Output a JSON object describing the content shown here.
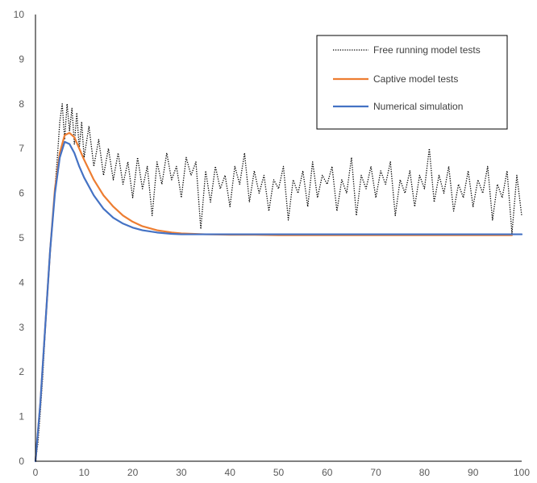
{
  "chart_data": {
    "type": "line",
    "title": "",
    "xlabel": "",
    "ylabel": "",
    "xlim": [
      0,
      100
    ],
    "ylim": [
      0,
      10
    ],
    "x_ticks": [
      0,
      10,
      20,
      30,
      40,
      50,
      60,
      70,
      80,
      90,
      100
    ],
    "y_ticks": [
      0,
      1,
      2,
      3,
      4,
      5,
      6,
      7,
      8,
      9,
      10
    ],
    "grid": false,
    "legend_position": "top-right",
    "series": [
      {
        "name": "Free running model tests",
        "color": "#000000",
        "style": "dotted",
        "x": [
          0,
          0.5,
          1,
          1.5,
          2,
          2.5,
          3,
          3.5,
          4,
          4.5,
          5,
          5.5,
          6,
          6.5,
          7,
          7.5,
          8,
          8.5,
          9,
          9.5,
          10,
          11,
          12,
          13,
          14,
          15,
          16,
          17,
          18,
          19,
          20,
          21,
          22,
          23,
          24,
          25,
          26,
          27,
          28,
          29,
          30,
          31,
          32,
          33,
          34,
          35,
          36,
          37,
          38,
          39,
          40,
          41,
          42,
          43,
          44,
          45,
          46,
          47,
          48,
          49,
          50,
          51,
          52,
          53,
          54,
          55,
          56,
          57,
          58,
          59,
          60,
          61,
          62,
          63,
          64,
          65,
          66,
          67,
          68,
          69,
          70,
          71,
          72,
          73,
          74,
          75,
          76,
          77,
          78,
          79,
          80,
          81,
          82,
          83,
          84,
          85,
          86,
          87,
          88,
          89,
          90,
          91,
          92,
          93,
          94,
          95,
          96,
          97,
          98,
          99,
          100
        ],
        "y": [
          0,
          0.4,
          1.1,
          1.9,
          2.9,
          3.8,
          4.6,
          5.4,
          6.1,
          6.8,
          7.6,
          8.0,
          7.2,
          8.0,
          7.4,
          7.9,
          7.1,
          7.8,
          7.0,
          7.6,
          6.8,
          7.5,
          6.6,
          7.2,
          6.4,
          7.0,
          6.3,
          6.9,
          6.2,
          6.7,
          5.9,
          6.8,
          6.1,
          6.6,
          5.5,
          6.7,
          6.2,
          6.9,
          6.3,
          6.6,
          5.9,
          6.8,
          6.4,
          6.7,
          5.2,
          6.5,
          5.8,
          6.6,
          6.1,
          6.4,
          5.7,
          6.6,
          6.2,
          6.9,
          5.8,
          6.5,
          6.0,
          6.4,
          5.6,
          6.3,
          6.1,
          6.6,
          5.4,
          6.3,
          6.0,
          6.5,
          5.7,
          6.7,
          5.9,
          6.4,
          6.2,
          6.6,
          5.6,
          6.3,
          6.0,
          6.8,
          5.5,
          6.4,
          6.1,
          6.6,
          5.9,
          6.5,
          6.2,
          6.7,
          5.5,
          6.3,
          6.0,
          6.5,
          5.7,
          6.4,
          6.1,
          7.0,
          5.8,
          6.4,
          6.0,
          6.6,
          5.6,
          6.2,
          5.9,
          6.5,
          5.7,
          6.3,
          6.0,
          6.6,
          5.4,
          6.2,
          5.9,
          6.5,
          5.1,
          6.4,
          5.5
        ],
        "y_note": ""
      },
      {
        "name": "Captive model tests",
        "color": "#ED7D31",
        "style": "solid",
        "x": [
          0,
          1,
          2,
          3,
          4,
          5,
          6,
          7,
          8,
          9,
          10,
          12,
          14,
          16,
          18,
          20,
          22,
          25,
          28,
          30,
          35,
          40,
          45,
          50,
          60,
          70,
          80,
          90,
          98
        ],
        "y": [
          0,
          1.3,
          3.0,
          4.7,
          6.1,
          6.9,
          7.3,
          7.35,
          7.25,
          7.0,
          6.75,
          6.3,
          5.95,
          5.7,
          5.5,
          5.36,
          5.26,
          5.17,
          5.12,
          5.1,
          5.08,
          5.07,
          5.07,
          5.06,
          5.06,
          5.06,
          5.06,
          5.06,
          5.06
        ]
      },
      {
        "name": "Numerical simulation",
        "color": "#4472C4",
        "style": "solid",
        "x": [
          0,
          1,
          2,
          3,
          4,
          5,
          6,
          7,
          8,
          9,
          10,
          12,
          14,
          16,
          18,
          20,
          22,
          25,
          28,
          30,
          35,
          40,
          45,
          50,
          60,
          70,
          80,
          90,
          100
        ],
        "y": [
          0,
          1.3,
          3.0,
          4.7,
          6.0,
          6.8,
          7.15,
          7.1,
          6.9,
          6.6,
          6.35,
          5.95,
          5.65,
          5.45,
          5.32,
          5.23,
          5.17,
          5.12,
          5.09,
          5.08,
          5.08,
          5.08,
          5.08,
          5.08,
          5.08,
          5.08,
          5.08,
          5.08,
          5.08
        ]
      }
    ]
  }
}
